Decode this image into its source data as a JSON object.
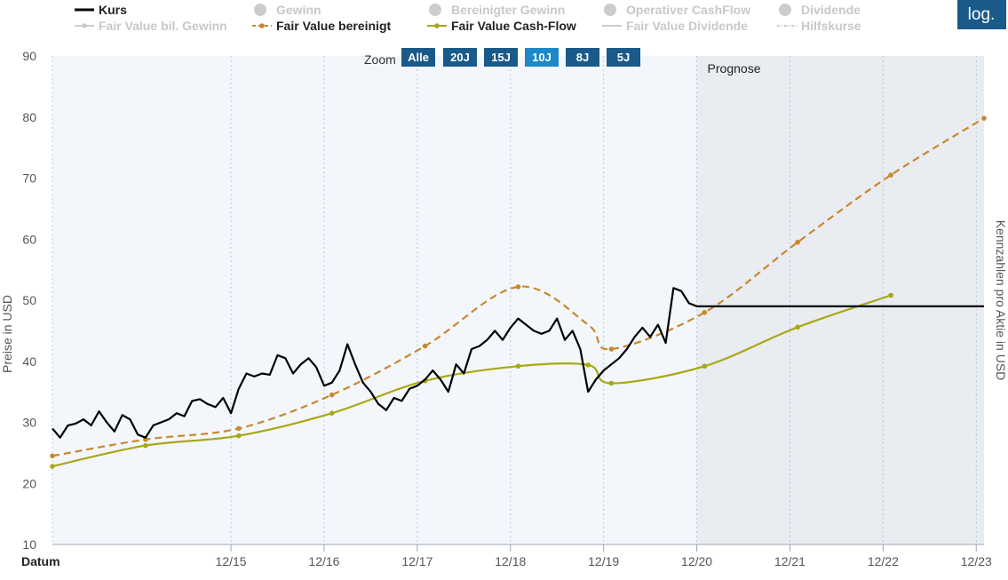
{
  "log_button": "log.",
  "zoom": {
    "label": "Zoom",
    "buttons": [
      "Alle",
      "20J",
      "15J",
      "10J",
      "8J",
      "5J"
    ],
    "active": "10J"
  },
  "legend": [
    {
      "label": "Kurs",
      "active": true,
      "color": "#000000",
      "style": "line"
    },
    {
      "label": "Gewinn",
      "active": false,
      "color": "#cccccc",
      "style": "dot"
    },
    {
      "label": "Bereinigter Gewinn",
      "active": false,
      "color": "#cccccc",
      "style": "dot"
    },
    {
      "label": "Operativer CashFlow",
      "active": false,
      "color": "#cccccc",
      "style": "dot"
    },
    {
      "label": "Dividende",
      "active": false,
      "color": "#cccccc",
      "style": "dot"
    },
    {
      "label": "Fair Value bil. Gewinn",
      "active": false,
      "color": "#cccccc",
      "style": "line-dot"
    },
    {
      "label": "Fair Value bereinigt",
      "active": true,
      "color": "#c8882e",
      "style": "dash-dot"
    },
    {
      "label": "Fair Value Cash-Flow",
      "active": true,
      "color": "#a8a814",
      "style": "line-dot"
    },
    {
      "label": "Fair Value Dividende",
      "active": false,
      "color": "#cccccc",
      "style": "line"
    },
    {
      "label": "Hilfskurse",
      "active": false,
      "color": "#cccccc",
      "style": "dashdot"
    }
  ],
  "chart_data": {
    "type": "line",
    "xlabel": "Datum",
    "ylabel": "Preise in USD",
    "y2label": "Kennzahlen pro Aktie in USD",
    "forecast_label": "Prognose",
    "forecast_start": "12/20",
    "x_ticks": [
      "12/15",
      "12/16",
      "12/17",
      "12/18",
      "12/19",
      "12/20",
      "12/21",
      "12/22",
      "12/23"
    ],
    "y_ticks": [
      10,
      20,
      30,
      40,
      50,
      60,
      70,
      80,
      90
    ],
    "ylim": [
      10,
      90
    ],
    "xlim": [
      "2014-01",
      "2024-01"
    ],
    "grid": "vertical dotted",
    "colors": {
      "kurs": "#000000",
      "fv_bereinigt": "#c8882e",
      "fv_cashflow": "#a8a814",
      "forecast_bg": "#e9ecf1",
      "history_bg": "#f3f7fc"
    },
    "series": [
      {
        "name": "Kurs",
        "x": [
          "2014-01",
          "2014-02",
          "2014-03",
          "2014-04",
          "2014-05",
          "2014-06",
          "2014-07",
          "2014-08",
          "2014-09",
          "2014-10",
          "2014-11",
          "2014-12",
          "2015-01",
          "2015-02",
          "2015-03",
          "2015-04",
          "2015-05",
          "2015-06",
          "2015-07",
          "2015-08",
          "2015-09",
          "2015-10",
          "2015-11",
          "2015-12",
          "2016-01",
          "2016-02",
          "2016-03",
          "2016-04",
          "2016-05",
          "2016-06",
          "2016-07",
          "2016-08",
          "2016-09",
          "2016-10",
          "2016-11",
          "2016-12",
          "2017-01",
          "2017-02",
          "2017-03",
          "2017-04",
          "2017-05",
          "2017-06",
          "2017-07",
          "2017-08",
          "2017-09",
          "2017-10",
          "2017-11",
          "2017-12",
          "2018-01",
          "2018-02",
          "2018-03",
          "2018-04",
          "2018-05",
          "2018-06",
          "2018-07",
          "2018-08",
          "2018-09",
          "2018-10",
          "2018-11",
          "2018-12",
          "2019-01",
          "2019-02",
          "2019-03",
          "2019-04",
          "2019-05",
          "2019-06",
          "2019-07",
          "2019-08",
          "2019-09",
          "2019-10",
          "2019-11",
          "2019-12",
          "2020-01",
          "2020-02",
          "2020-03",
          "2020-04",
          "2020-05",
          "2020-06",
          "2020-07",
          "2020-08",
          "2020-09",
          "2020-10",
          "2020-11",
          "2020-12",
          "2021-01",
          "2024-01"
        ],
        "values": [
          29.0,
          27.5,
          29.5,
          29.8,
          30.5,
          29.5,
          31.8,
          30.0,
          28.5,
          31.2,
          30.5,
          28.0,
          27.5,
          29.5,
          30.0,
          30.5,
          31.5,
          31.0,
          33.5,
          33.8,
          33.0,
          32.5,
          34.0,
          31.5,
          35.5,
          38.0,
          37.5,
          38.0,
          37.8,
          41.0,
          40.5,
          38.0,
          39.5,
          40.5,
          39.0,
          36.0,
          36.5,
          38.5,
          42.8,
          39.5,
          36.5,
          35.0,
          33.0,
          32.0,
          34.0,
          33.5,
          35.5,
          36.0,
          37.0,
          38.5,
          37.0,
          35.0,
          39.5,
          38.0,
          42.0,
          42.5,
          43.5,
          45.0,
          43.5,
          45.5,
          47.0,
          46.0,
          45.0,
          44.5,
          45.0,
          47.0,
          43.5,
          45.0,
          42.0,
          35.0,
          37.0,
          38.5,
          39.5,
          40.5,
          42.0,
          44.0,
          45.5,
          44.0,
          46.0,
          43.0,
          52.0,
          51.5,
          49.5,
          49.0,
          49.0,
          49.0
        ]
      },
      {
        "name": "Fair Value bereinigt",
        "x": [
          "2014-01",
          "2015-01",
          "2016-01",
          "2017-01",
          "2018-01",
          "2019-01",
          "2019-10",
          "2020-01",
          "2021-01",
          "2022-01",
          "2023-01",
          "2024-01"
        ],
        "values": [
          24.5,
          27.2,
          29.0,
          34.5,
          42.5,
          52.2,
          46.0,
          42.0,
          48.0,
          59.5,
          70.5,
          79.8
        ]
      },
      {
        "name": "Fair Value Cash-Flow",
        "x": [
          "2014-01",
          "2015-01",
          "2016-01",
          "2017-01",
          "2018-01",
          "2019-01",
          "2019-10",
          "2020-01",
          "2021-01",
          "2022-01",
          "2023-01"
        ],
        "values": [
          22.8,
          26.2,
          27.8,
          31.5,
          36.8,
          39.2,
          39.4,
          36.4,
          39.2,
          45.6,
          50.8
        ]
      }
    ]
  }
}
